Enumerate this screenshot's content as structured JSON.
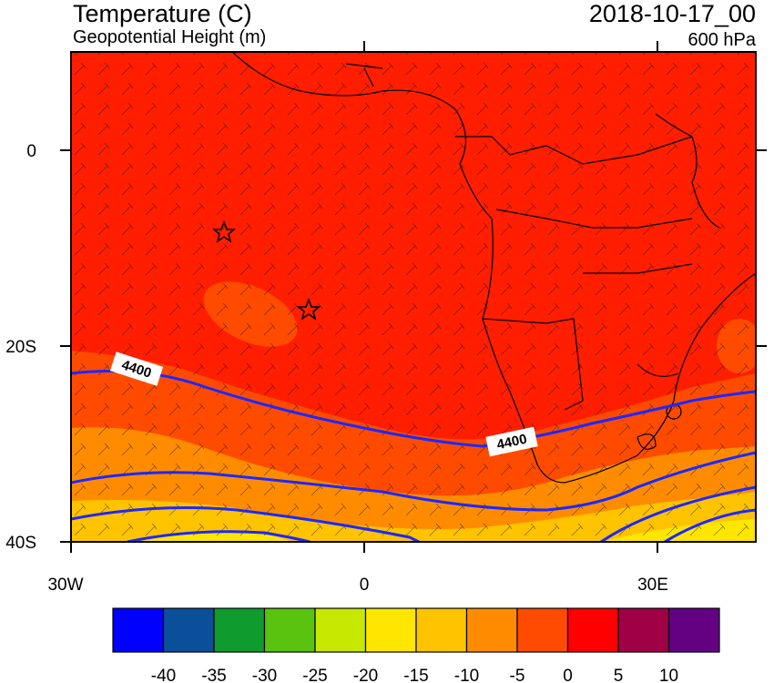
{
  "header": {
    "title": "Temperature (C)",
    "subtitle": "Geopotential Height (m)",
    "datetime": "2018-10-17_00",
    "level": "600 hPa"
  },
  "axes": {
    "y_ticks": [
      "0",
      "20S",
      "40S"
    ],
    "x_ticks": [
      "30W",
      "0",
      "30E"
    ]
  },
  "contours": {
    "label": "4400",
    "color": "#1e28ff"
  },
  "colorbar": {
    "colors": [
      "#0000ff",
      "#0a4f9a",
      "#0f9b2d",
      "#5ac30f",
      "#c7e800",
      "#ffe600",
      "#ffc300",
      "#ff8c00",
      "#ff4b00",
      "#ff0000",
      "#a00046",
      "#640082"
    ],
    "labels": [
      "-40",
      "-35",
      "-30",
      "-25",
      "-20",
      "-15",
      "-10",
      "-5",
      "0",
      "5",
      "10"
    ]
  },
  "map_colors": {
    "warm": "#ff1e00",
    "mid": "#ff4b00",
    "cool": "#ff8c00",
    "cooler": "#ffc300",
    "coolest": "#ffe600"
  }
}
